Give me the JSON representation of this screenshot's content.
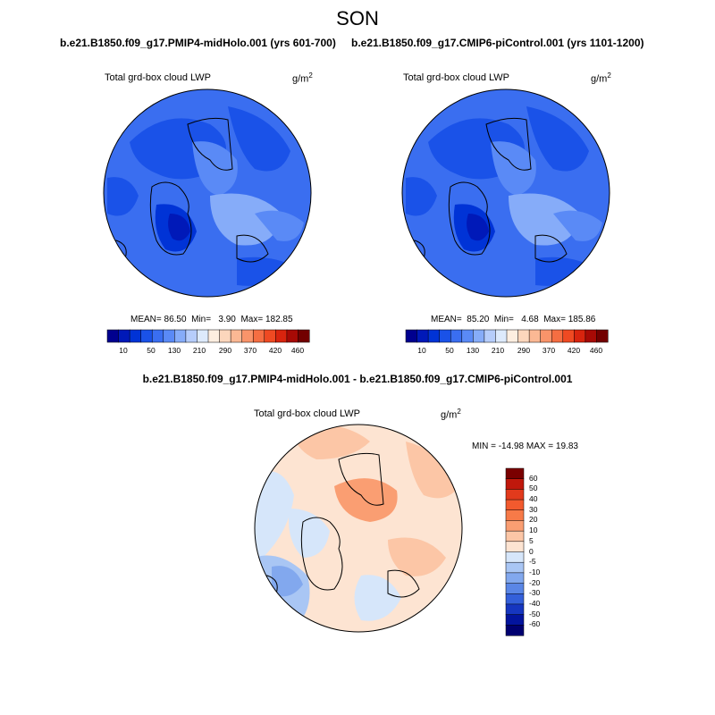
{
  "season": "SON",
  "panels": [
    {
      "case_title": "b.e21.B1850.f09_g17.PMIP4-midHolo.001 (yrs 601-700)",
      "variable_label": "Total grd-box cloud LWP",
      "unit_base": "g/m",
      "unit_exp": "2",
      "stats": {
        "mean_label": "MEAN=",
        "mean": "86.50",
        "min_label": "Min=",
        "min": "3.90",
        "max_label": "Max=",
        "max": "182.85"
      }
    },
    {
      "case_title": "b.e21.B1850.f09_g17.CMIP6-piControl.001 (yrs 1101-1200)",
      "variable_label": "Total grd-box cloud LWP",
      "unit_base": "g/m",
      "unit_exp": "2",
      "stats": {
        "mean_label": "MEAN=",
        "mean": "85.20",
        "min_label": "Min=",
        "min": "4.68",
        "max_label": "Max=",
        "max": "185.86"
      }
    }
  ],
  "abs_colorbar": {
    "colors": [
      "#00008f",
      "#0019b8",
      "#0033d6",
      "#1a52e8",
      "#3a6ef0",
      "#5a8af6",
      "#86acf9",
      "#b6cdfb",
      "#ddeafc",
      "#fdeee0",
      "#fcd6bc",
      "#fbb894",
      "#f9946a",
      "#f56e42",
      "#ef4a22",
      "#d8240e",
      "#a70a05",
      "#720000"
    ],
    "tick_labels": [
      "10",
      "50",
      "130",
      "210",
      "290",
      "370",
      "420",
      "460"
    ]
  },
  "diff": {
    "title": "b.e21.B1850.f09_g17.PMIP4-midHolo.001 - b.e21.B1850.f09_g17.CMIP6-piControl.001",
    "variable_label": "Total grd-box cloud LWP",
    "unit_base": "g/m",
    "unit_exp": "2",
    "minmax": "MIN = -14.98 MAX =  19.83",
    "colorbar": {
      "colors_top_to_bottom": [
        "#7a0000",
        "#c0180c",
        "#e23a1c",
        "#f25a2e",
        "#f77a48",
        "#fa9e72",
        "#fcc6a6",
        "#fde4d2",
        "#d6e6fa",
        "#a9c6f4",
        "#82a8ee",
        "#5a86e6",
        "#3460da",
        "#1636c0",
        "#03149e",
        "#000070"
      ],
      "tick_labels": [
        "60",
        "50",
        "40",
        "30",
        "20",
        "10",
        "5",
        "0",
        "-5",
        "-10",
        "-20",
        "-30",
        "-40",
        "-50",
        "-60"
      ]
    }
  }
}
